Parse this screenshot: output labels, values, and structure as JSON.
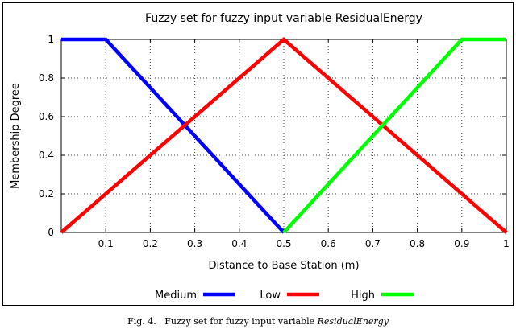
{
  "chart_data": {
    "type": "line",
    "title": "Fuzzy set for fuzzy input variable ResidualEnergy",
    "xlabel": "Distance to Base Station (m)",
    "ylabel": "Membership Degree",
    "xlim": [
      0,
      1
    ],
    "ylim": [
      0,
      1
    ],
    "x_ticks": [
      "0.1",
      "0.2",
      "0.3",
      "0.4",
      "0.5",
      "0.6",
      "0.7",
      "0.8",
      "0.9",
      "1"
    ],
    "y_ticks": [
      "0",
      "0.2",
      "0.4",
      "0.6",
      "0.8",
      "1"
    ],
    "grid": true,
    "legend_position": "bottom",
    "series": [
      {
        "name": "Medium",
        "color": "#0000ff",
        "x": [
          0,
          0.1,
          0.5
        ],
        "y": [
          1,
          1,
          0
        ]
      },
      {
        "name": "Low",
        "color": "#ff0000",
        "x": [
          0,
          0.5,
          1
        ],
        "y": [
          0,
          1,
          0
        ]
      },
      {
        "name": "High",
        "color": "#00ff00",
        "x": [
          0.5,
          0.9,
          1
        ],
        "y": [
          0,
          1,
          1
        ]
      }
    ]
  },
  "caption": {
    "prefix": "Fig. 4.",
    "text": "Fuzzy set for fuzzy input variable",
    "variable": "ResidualEnergy"
  }
}
